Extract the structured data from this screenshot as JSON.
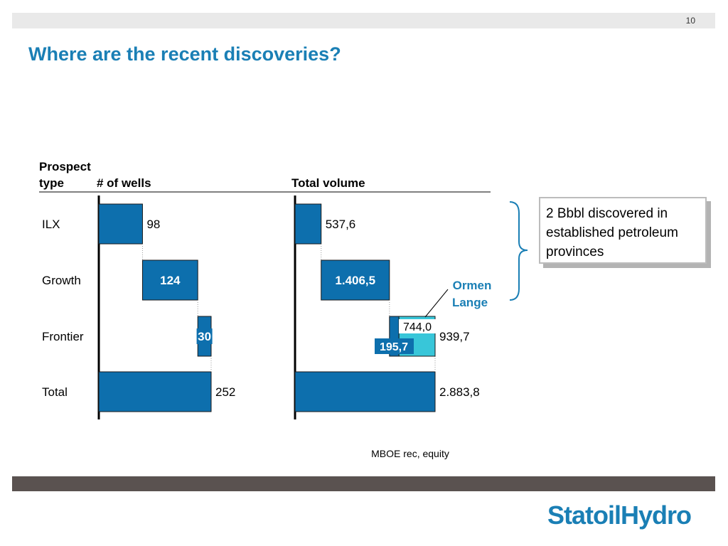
{
  "page": {
    "number": "10",
    "title": "Where are the recent discoveries?",
    "logo": "StatoilHydro",
    "callout": "2 Bbbl discovered in established petroleum provinces"
  },
  "colors": {
    "primary": "#0d6fad",
    "highlight": "#38c6d9",
    "title": "#1a7fb5",
    "footer_bar": "#5a5250",
    "header_bar": "#e9e9e9"
  },
  "chart_data": {
    "type": "waterfall",
    "headers": {
      "prospect_type": "Prospect\ntype",
      "wells": "# of wells",
      "volume": "Total volume"
    },
    "categories": [
      "ILX",
      "Growth",
      "Frontier",
      "Total"
    ],
    "wells": {
      "values": [
        98,
        124,
        30,
        252
      ],
      "labels": [
        "98",
        "124",
        "30",
        "252"
      ],
      "label_inside": [
        false,
        true,
        true,
        false
      ]
    },
    "volume": {
      "values": [
        537.6,
        1406.5,
        939.7,
        2883.8
      ],
      "labels": [
        "537,6",
        "1.406,5",
        "939,7",
        "2.883,8"
      ],
      "label_inside": [
        false,
        true,
        false,
        false
      ]
    },
    "frontier_split": {
      "ormen_lange": {
        "value": 744.0,
        "label": "744,0",
        "name": "Ormen\nLange"
      },
      "other": {
        "value": 195.7,
        "label": "195,7"
      }
    },
    "unit_note": "MBOE rec, equity"
  }
}
